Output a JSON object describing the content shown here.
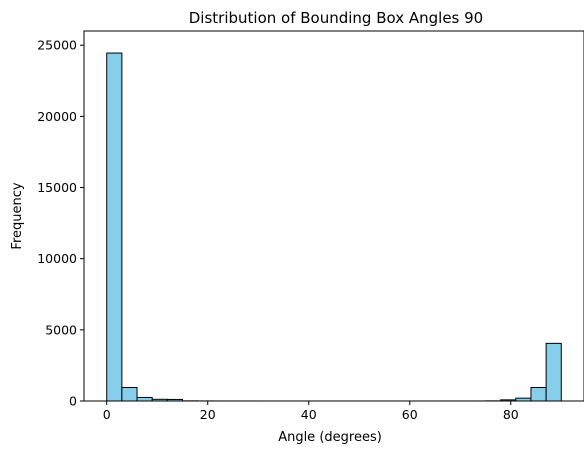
{
  "chart_data": {
    "type": "bar",
    "title": "Distribution of Bounding Box Angles 90",
    "xlabel": "Angle (degrees)",
    "ylabel": "Frequency",
    "xlim": [
      -4.5,
      94.5
    ],
    "ylim": [
      0,
      26000
    ],
    "xticks": [
      0,
      20,
      40,
      60,
      80
    ],
    "yticks": [
      0,
      5000,
      10000,
      15000,
      20000,
      25000
    ],
    "grid": false,
    "legend": "none",
    "bar_color": "#87CEEB",
    "edge_color": "#000000",
    "bin_width": 3,
    "bins": [
      {
        "x0": 0,
        "x1": 3,
        "count": 24450
      },
      {
        "x0": 3,
        "x1": 6,
        "count": 950
      },
      {
        "x0": 6,
        "x1": 9,
        "count": 250
      },
      {
        "x0": 9,
        "x1": 12,
        "count": 120
      },
      {
        "x0": 12,
        "x1": 15,
        "count": 110
      },
      {
        "x0": 15,
        "x1": 18,
        "count": 10
      },
      {
        "x0": 18,
        "x1": 21,
        "count": 5
      },
      {
        "x0": 21,
        "x1": 24,
        "count": 3
      },
      {
        "x0": 24,
        "x1": 27,
        "count": 2
      },
      {
        "x0": 27,
        "x1": 30,
        "count": 2
      },
      {
        "x0": 30,
        "x1": 33,
        "count": 1
      },
      {
        "x0": 33,
        "x1": 36,
        "count": 1
      },
      {
        "x0": 36,
        "x1": 39,
        "count": 1
      },
      {
        "x0": 39,
        "x1": 42,
        "count": 1
      },
      {
        "x0": 42,
        "x1": 45,
        "count": 1
      },
      {
        "x0": 45,
        "x1": 48,
        "count": 1
      },
      {
        "x0": 48,
        "x1": 51,
        "count": 1
      },
      {
        "x0": 51,
        "x1": 54,
        "count": 1
      },
      {
        "x0": 54,
        "x1": 57,
        "count": 1
      },
      {
        "x0": 57,
        "x1": 60,
        "count": 1
      },
      {
        "x0": 60,
        "x1": 63,
        "count": 1
      },
      {
        "x0": 63,
        "x1": 66,
        "count": 1
      },
      {
        "x0": 66,
        "x1": 69,
        "count": 2
      },
      {
        "x0": 69,
        "x1": 72,
        "count": 2
      },
      {
        "x0": 72,
        "x1": 75,
        "count": 3
      },
      {
        "x0": 75,
        "x1": 78,
        "count": 10
      },
      {
        "x0": 78,
        "x1": 81,
        "count": 80
      },
      {
        "x0": 81,
        "x1": 84,
        "count": 200
      },
      {
        "x0": 84,
        "x1": 87,
        "count": 950
      },
      {
        "x0": 87,
        "x1": 90,
        "count": 4050
      }
    ]
  }
}
